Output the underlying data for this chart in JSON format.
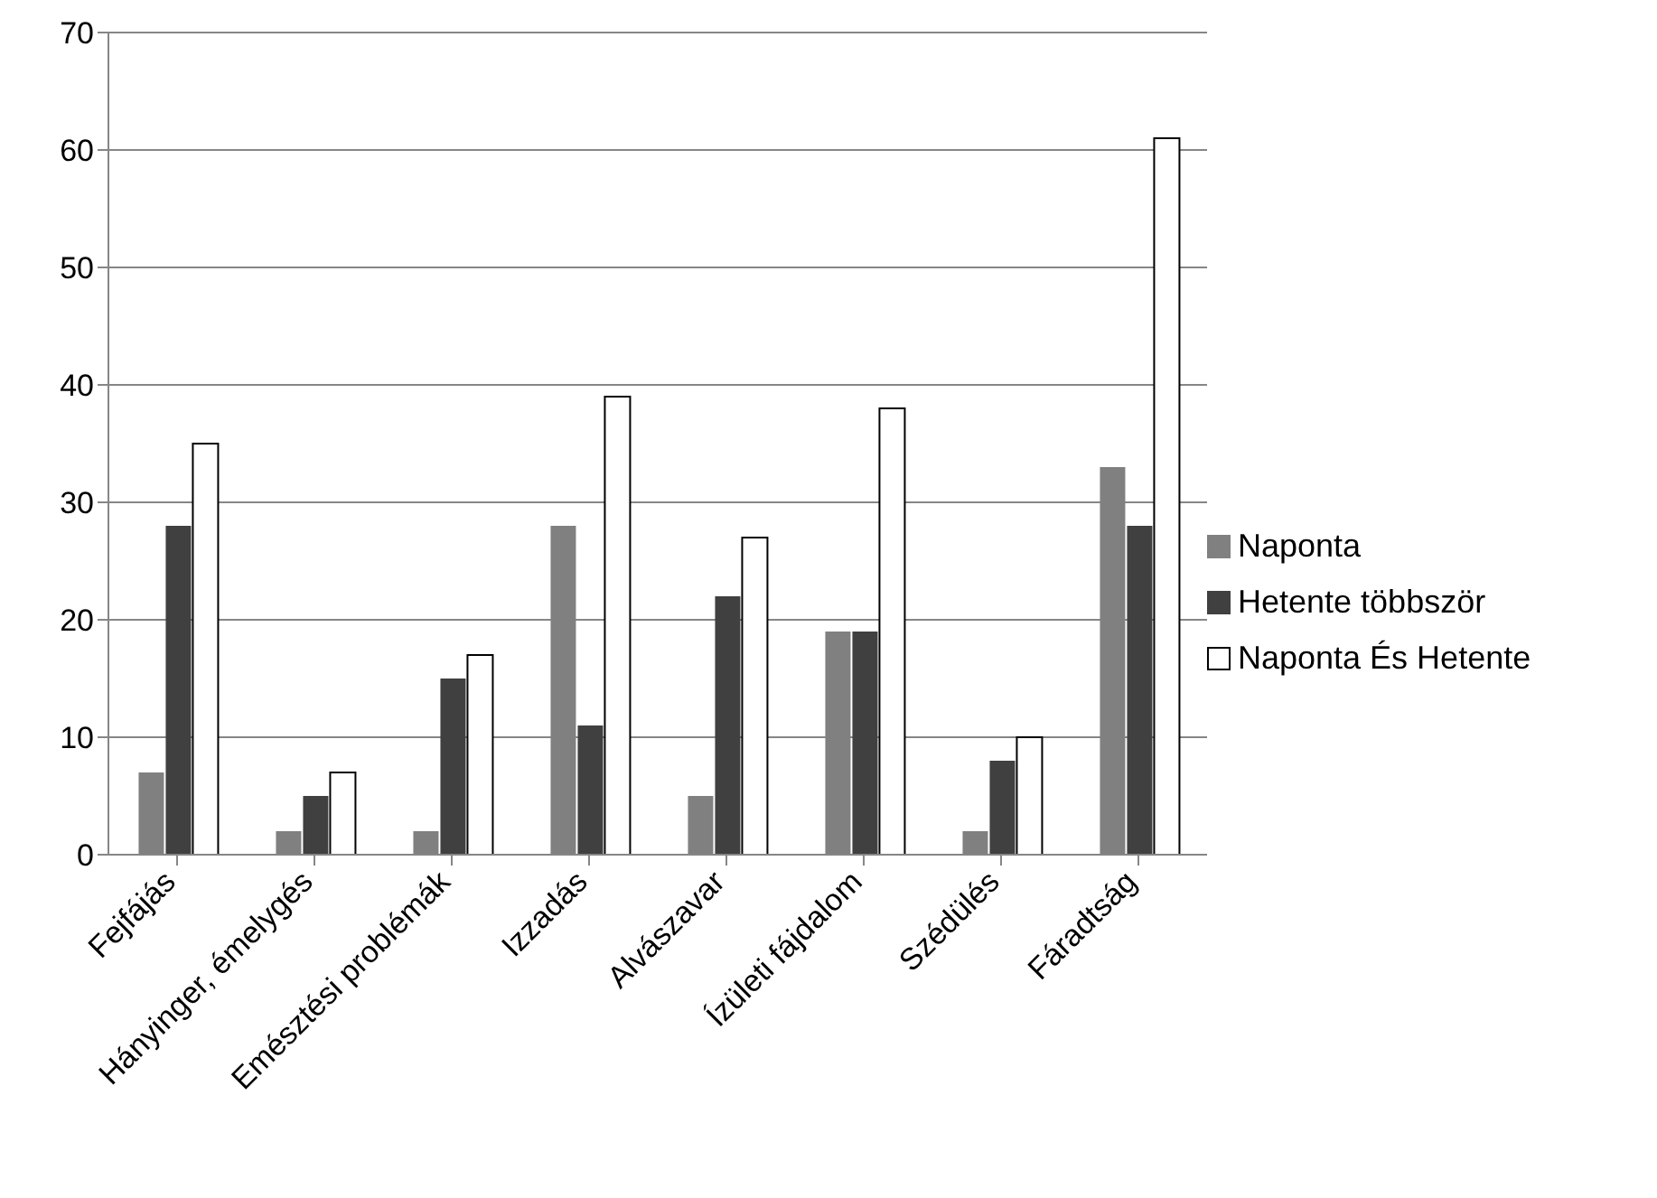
{
  "chart_data": {
    "type": "bar",
    "categories": [
      "Fejfájás",
      "Hányinger, émelygés",
      "Emésztési problémák",
      "Izzadás",
      "Alvászavar",
      "Ízületi fájdalom",
      "Szédülés",
      "Fáradtság"
    ],
    "series": [
      {
        "name": "Naponta",
        "color": "#808080",
        "values": [
          7,
          2,
          2,
          28,
          5,
          19,
          2,
          33
        ]
      },
      {
        "name": "Hetente többször",
        "color": "#404040",
        "values": [
          28,
          5,
          15,
          11,
          22,
          19,
          8,
          28
        ]
      },
      {
        "name": "Naponta És Hetente",
        "color": "#ffffff",
        "values": [
          35,
          7,
          17,
          39,
          27,
          38,
          10,
          61
        ]
      }
    ],
    "ylim": [
      0,
      70
    ],
    "yticks": [
      0,
      10,
      20,
      30,
      40,
      50,
      60,
      70
    ],
    "grid": "y",
    "legend": "right"
  }
}
